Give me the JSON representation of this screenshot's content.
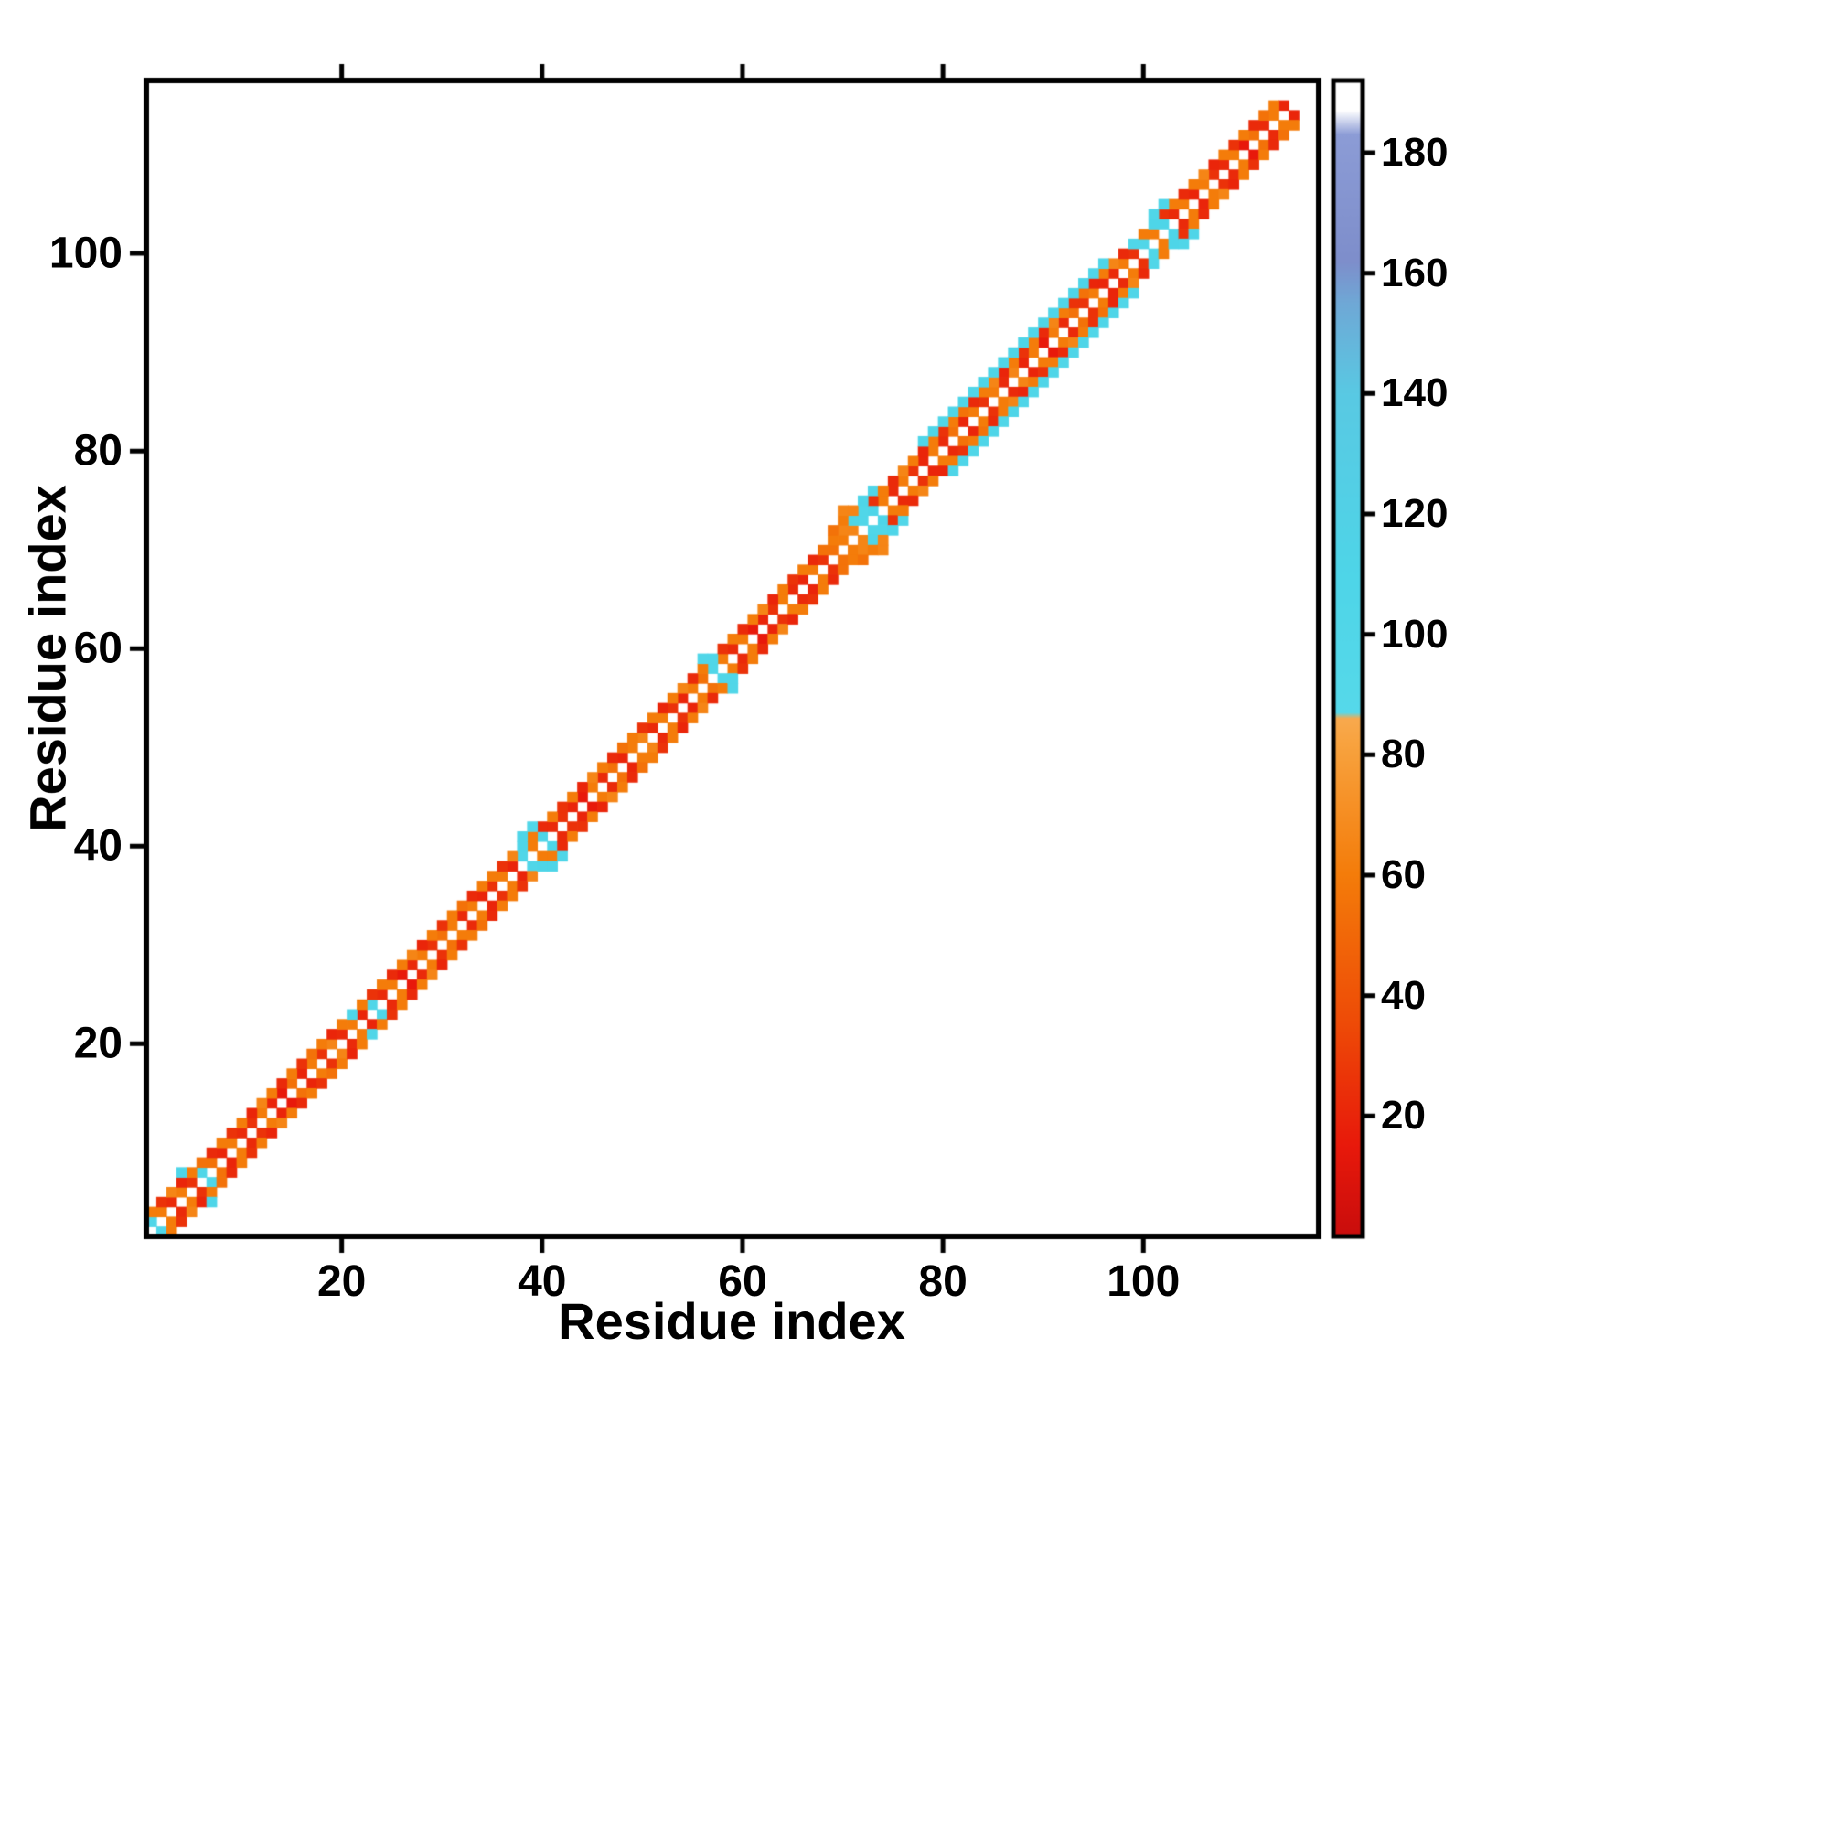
{
  "figure": {
    "background": "#ffffff",
    "frame_color": "#000000"
  },
  "chart_data": {
    "type": "heatmap",
    "title": "",
    "xlabel": "Residue index",
    "ylabel": "Residue index",
    "n": 117,
    "x_range": [
      1,
      117
    ],
    "y_range": [
      1,
      117
    ],
    "grid": false,
    "x_ticks": [
      20,
      40,
      60,
      80,
      100
    ],
    "y_ticks": [
      20,
      40,
      60,
      80,
      100
    ],
    "colorbar": {
      "position": "right",
      "vmin": 0,
      "vmax": 192,
      "ticks": [
        20,
        40,
        60,
        80,
        100,
        120,
        140,
        160,
        180
      ]
    },
    "colormap": {
      "stops": [
        [
          0,
          "#c90d0d"
        ],
        [
          15,
          "#e8190b"
        ],
        [
          35,
          "#ee4a07"
        ],
        [
          60,
          "#f47c0a"
        ],
        [
          82,
          "#f8a33f"
        ],
        [
          86,
          "#f8a94e"
        ],
        [
          87,
          "#56d9ea"
        ],
        [
          110,
          "#4ed5e8"
        ],
        [
          140,
          "#59c9e3"
        ],
        [
          155,
          "#6fa8d6"
        ],
        [
          162,
          "#7e8ecb"
        ],
        [
          183,
          "#8c9cd6"
        ],
        [
          187,
          "#ffffff"
        ],
        [
          192,
          "#ffffff"
        ]
      ]
    },
    "band1": [
      105,
      60,
      22,
      60,
      25,
      105,
      55,
      20,
      60,
      22,
      25,
      60,
      20,
      15,
      55,
      20,
      60,
      25,
      65,
      22,
      60,
      20,
      105,
      22,
      60,
      15,
      22,
      60,
      25,
      55,
      60,
      22,
      60,
      20,
      25,
      60,
      20,
      105,
      60,
      110,
      22,
      25,
      20,
      15,
      60,
      22,
      55,
      20,
      60,
      65,
      22,
      60,
      25,
      20,
      60,
      55,
      105,
      60,
      22,
      60,
      15,
      20,
      25,
      60,
      22,
      20,
      60,
      25,
      55,
      60,
      65,
      105,
      110,
      60,
      22,
      60,
      25,
      20,
      60,
      22,
      55,
      20,
      60,
      25,
      60,
      22,
      65,
      20,
      60,
      15,
      60,
      22,
      55,
      25,
      60,
      20,
      22,
      60,
      25,
      105,
      60,
      110,
      22,
      60,
      20,
      60,
      25,
      22,
      60,
      15,
      55,
      22,
      60,
      20
    ],
    "band2": [
      60,
      25,
      65,
      20,
      60,
      55,
      22,
      60,
      25,
      60,
      20,
      65,
      60,
      22,
      60,
      25,
      55,
      60,
      20,
      60,
      105,
      60,
      25,
      60,
      22,
      60,
      65,
      20,
      60,
      25,
      60,
      55,
      22,
      60,
      60,
      25,
      65,
      110,
      60,
      22,
      60,
      25,
      60,
      20,
      65,
      60,
      22,
      55,
      60,
      25,
      60,
      20,
      60,
      65,
      22,
      60,
      105,
      25,
      60,
      22,
      60,
      65,
      20,
      60,
      25,
      60,
      22,
      55,
      60,
      65,
      110,
      105,
      25,
      60,
      22,
      65,
      60,
      20,
      60,
      25,
      60,
      55,
      22,
      60,
      65,
      20,
      60,
      25,
      60,
      22,
      65,
      60,
      25,
      55,
      20,
      60,
      65,
      22,
      105,
      60,
      110,
      25,
      60,
      22,
      60,
      65,
      20,
      60,
      25,
      60,
      22,
      55,
      60
    ],
    "extra": [
      [
        4,
        7,
        110
      ],
      [
        38,
        41,
        110
      ],
      [
        39,
        42,
        105
      ],
      [
        56,
        59,
        105
      ],
      [
        69,
        72,
        55
      ],
      [
        70,
        73,
        60
      ],
      [
        70,
        74,
        65
      ],
      [
        71,
        74,
        65
      ],
      [
        72,
        75,
        110
      ],
      [
        73,
        76,
        105
      ],
      [
        74,
        76,
        60
      ],
      [
        78,
        81,
        110
      ],
      [
        79,
        82,
        110
      ],
      [
        80,
        83,
        105
      ],
      [
        81,
        84,
        110
      ],
      [
        82,
        85,
        110
      ],
      [
        83,
        86,
        105
      ],
      [
        84,
        87,
        110
      ],
      [
        85,
        88,
        110
      ],
      [
        86,
        89,
        105
      ],
      [
        87,
        90,
        110
      ],
      [
        88,
        91,
        110
      ],
      [
        89,
        92,
        105
      ],
      [
        90,
        93,
        110
      ],
      [
        91,
        94,
        110
      ],
      [
        92,
        95,
        105
      ],
      [
        93,
        96,
        110
      ],
      [
        94,
        97,
        110
      ],
      [
        95,
        98,
        105
      ],
      [
        96,
        99,
        110
      ],
      [
        101,
        104,
        105
      ],
      [
        102,
        105,
        110
      ]
    ]
  }
}
